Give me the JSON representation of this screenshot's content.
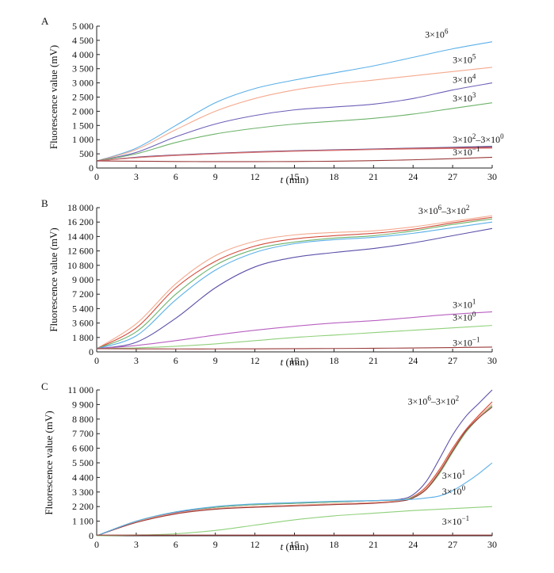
{
  "chart_data": [
    {
      "type": "line",
      "panel": "A",
      "xlabel_italic": "t",
      "xlabel_unit": " (min)",
      "ylabel": "Fluorescence value (mV)",
      "xlim": [
        0,
        30
      ],
      "ylim": [
        0,
        5000
      ],
      "xticks": [
        0,
        3,
        6,
        9,
        12,
        15,
        18,
        21,
        24,
        27,
        30
      ],
      "xtick_labels": [
        "0",
        "3",
        "6",
        "9",
        "12",
        "15",
        "18",
        "21",
        "24",
        "27",
        "30"
      ],
      "yticks": [
        0,
        500,
        1000,
        1500,
        2000,
        2500,
        3000,
        3500,
        4000,
        4500,
        5000
      ],
      "ytick_labels": [
        "0",
        "500",
        "1 000",
        "1 500",
        "2 000",
        "2 500",
        "3 000",
        "3 500",
        "4 000",
        "4 500",
        "5 000"
      ],
      "series": [
        {
          "color": "#5bb0e8",
          "x": [
            0,
            3,
            6,
            9,
            12,
            15,
            18,
            21,
            24,
            27,
            30
          ],
          "y": [
            250,
            700,
            1500,
            2300,
            2800,
            3100,
            3350,
            3600,
            3900,
            4200,
            4450
          ]
        },
        {
          "color": "#f4a98e",
          "x": [
            0,
            3,
            6,
            9,
            12,
            15,
            18,
            21,
            24,
            27,
            30
          ],
          "y": [
            250,
            650,
            1350,
            2000,
            2450,
            2750,
            2950,
            3100,
            3250,
            3400,
            3550
          ]
        },
        {
          "color": "#6f5fb8",
          "x": [
            0,
            3,
            6,
            9,
            12,
            15,
            18,
            21,
            24,
            27,
            30
          ],
          "y": [
            250,
            550,
            1100,
            1550,
            1850,
            2050,
            2150,
            2250,
            2450,
            2750,
            3000
          ]
        },
        {
          "color": "#6db36a",
          "x": [
            0,
            3,
            6,
            9,
            12,
            15,
            18,
            21,
            24,
            27,
            30
          ],
          "y": [
            250,
            500,
            900,
            1200,
            1400,
            1550,
            1650,
            1750,
            1900,
            2100,
            2300
          ]
        },
        {
          "color": "#3a3a8a",
          "x": [
            0,
            3,
            6,
            9,
            12,
            15,
            18,
            21,
            24,
            27,
            30
          ],
          "y": [
            250,
            380,
            460,
            520,
            570,
            610,
            640,
            670,
            700,
            730,
            760
          ]
        },
        {
          "color": "#c84a4a",
          "x": [
            0,
            3,
            6,
            9,
            12,
            15,
            18,
            21,
            24,
            27,
            30
          ],
          "y": [
            250,
            370,
            450,
            510,
            560,
            600,
            630,
            660,
            690,
            710,
            730
          ]
        },
        {
          "color": "#d77a7a",
          "x": [
            0,
            3,
            6,
            9,
            12,
            15,
            18,
            21,
            24,
            27,
            30
          ],
          "y": [
            250,
            360,
            440,
            500,
            550,
            590,
            620,
            650,
            670,
            690,
            700
          ]
        },
        {
          "color": "#9a3a3a",
          "x": [
            0,
            3,
            6,
            9,
            12,
            15,
            18,
            21,
            24,
            27,
            30
          ],
          "y": [
            250,
            240,
            230,
            225,
            225,
            230,
            240,
            260,
            290,
            330,
            380
          ]
        }
      ],
      "annotations": [
        {
          "base": "3×10",
          "exp": "6",
          "x": 24.9,
          "y": 4600
        },
        {
          "base": "3×10",
          "exp": "5",
          "x": 27.0,
          "y": 3700
        },
        {
          "base": "3×10",
          "exp": "4",
          "x": 27.0,
          "y": 3000
        },
        {
          "base": "3×10",
          "exp": "3",
          "x": 27.0,
          "y": 2350
        },
        {
          "base": "3×10",
          "exp": "2",
          "mid": "–3×10",
          "exp2": "0",
          "x": 27.0,
          "y": 900
        },
        {
          "base": "3×10",
          "exp": "−1",
          "x": 27.0,
          "y": 440
        }
      ]
    },
    {
      "type": "line",
      "panel": "B",
      "xlabel_italic": "t",
      "xlabel_unit": " (min)",
      "ylabel": "Fluorescence value (mV)",
      "xlim": [
        0,
        30
      ],
      "ylim": [
        0,
        18000
      ],
      "xticks": [
        0,
        3,
        6,
        9,
        12,
        15,
        18,
        21,
        24,
        27,
        30
      ],
      "xtick_labels": [
        "0",
        "3",
        "6",
        "9",
        "12",
        "15",
        "18",
        "21",
        "24",
        "27",
        "30"
      ],
      "yticks": [
        0,
        1800,
        3600,
        5400,
        7200,
        9000,
        10800,
        12600,
        14400,
        16200,
        18000
      ],
      "ytick_labels": [
        "0",
        "1 800",
        "3 600",
        "5 400",
        "7 200",
        "9 000",
        "10 800",
        "12 600",
        "14 400",
        "16 200",
        "18 000"
      ],
      "series": [
        {
          "color": "#f4a98e",
          "x": [
            0,
            3,
            6,
            9,
            12,
            15,
            18,
            21,
            24,
            27,
            30
          ],
          "y": [
            400,
            3500,
            8500,
            12000,
            13800,
            14600,
            14900,
            15100,
            15600,
            16300,
            17000
          ]
        },
        {
          "color": "#d44a3a",
          "x": [
            0,
            3,
            6,
            9,
            12,
            15,
            18,
            21,
            24,
            27,
            30
          ],
          "y": [
            400,
            3000,
            8000,
            11300,
            13200,
            14100,
            14500,
            14800,
            15300,
            16100,
            16800
          ]
        },
        {
          "color": "#6db36a",
          "x": [
            0,
            3,
            6,
            9,
            12,
            15,
            18,
            21,
            24,
            27,
            30
          ],
          "y": [
            400,
            2500,
            7200,
            10800,
            12800,
            13700,
            14200,
            14500,
            15100,
            15900,
            16600
          ]
        },
        {
          "color": "#5bb0e8",
          "x": [
            0,
            3,
            6,
            9,
            12,
            15,
            18,
            21,
            24,
            27,
            30
          ],
          "y": [
            400,
            2000,
            6500,
            10200,
            12400,
            13500,
            14000,
            14300,
            14800,
            15500,
            16200
          ]
        },
        {
          "color": "#5a4fa8",
          "x": [
            0,
            3,
            6,
            9,
            12,
            15,
            18,
            21,
            24,
            27,
            30
          ],
          "y": [
            400,
            1200,
            4200,
            8000,
            10600,
            11800,
            12400,
            12900,
            13600,
            14500,
            15400
          ]
        },
        {
          "color": "#b860c0",
          "x": [
            0,
            3,
            6,
            9,
            12,
            15,
            18,
            21,
            24,
            27,
            30
          ],
          "y": [
            400,
            800,
            1400,
            2100,
            2700,
            3200,
            3600,
            3900,
            4300,
            4700,
            5000
          ]
        },
        {
          "color": "#8fd07a",
          "x": [
            0,
            3,
            6,
            9,
            12,
            15,
            18,
            21,
            24,
            27,
            30
          ],
          "y": [
            400,
            500,
            700,
            1000,
            1400,
            1800,
            2100,
            2400,
            2700,
            3000,
            3300
          ]
        },
        {
          "color": "#9a3a3a",
          "x": [
            0,
            3,
            6,
            9,
            12,
            15,
            18,
            21,
            24,
            27,
            30
          ],
          "y": [
            400,
            380,
            370,
            370,
            380,
            400,
            420,
            450,
            490,
            540,
            600
          ]
        }
      ],
      "annotations": [
        {
          "base": "3×10",
          "exp": "6",
          "mid": "–3×10",
          "exp2": "2",
          "x": 24.4,
          "y": 17200
        },
        {
          "base": "3×10",
          "exp": "1",
          "x": 27.0,
          "y": 5500
        },
        {
          "base": "3×10",
          "exp": "0",
          "x": 27.0,
          "y": 3900
        },
        {
          "base": "3×10",
          "exp": "−1",
          "x": 27.0,
          "y": 750
        }
      ]
    },
    {
      "type": "line",
      "panel": "C",
      "xlabel_italic": "t",
      "xlabel_unit": " (min)",
      "ylabel": "Fluorescence value (mV)",
      "xlim": [
        0,
        30
      ],
      "ylim": [
        0,
        11000
      ],
      "xticks": [
        0,
        3,
        6,
        9,
        12,
        15,
        18,
        21,
        24,
        27,
        30
      ],
      "xtick_labels": [
        "0",
        "3",
        "6",
        "9",
        "12",
        "15",
        "18",
        "21",
        "24",
        "27",
        "30"
      ],
      "yticks": [
        0,
        1100,
        2200,
        3300,
        4400,
        5500,
        6600,
        7700,
        8800,
        9900,
        11000
      ],
      "ytick_labels": [
        "0",
        "1 100",
        "2 200",
        "3 300",
        "4 400",
        "5 500",
        "6 600",
        "7 700",
        "8 800",
        "9 900",
        "11 000"
      ],
      "series": [
        {
          "color": "#5a4fa8",
          "x": [
            0,
            3,
            6,
            9,
            12,
            15,
            18,
            21,
            23,
            24,
            25,
            26,
            27,
            28,
            29,
            30
          ],
          "y": [
            0,
            1100,
            1750,
            2150,
            2350,
            2450,
            2550,
            2650,
            2750,
            3100,
            4100,
            5800,
            7600,
            9000,
            10000,
            11000
          ]
        },
        {
          "color": "#d44a3a",
          "x": [
            0,
            3,
            6,
            9,
            12,
            15,
            18,
            21,
            23,
            24,
            25,
            26,
            27,
            28,
            29,
            30
          ],
          "y": [
            0,
            1050,
            1700,
            2050,
            2200,
            2300,
            2400,
            2500,
            2650,
            2950,
            3700,
            5000,
            6600,
            8000,
            9100,
            10100
          ]
        },
        {
          "color": "#f4a98e",
          "x": [
            0,
            3,
            6,
            9,
            12,
            15,
            18,
            21,
            23,
            24,
            25,
            26,
            27,
            28,
            29,
            30
          ],
          "y": [
            0,
            1050,
            1700,
            2050,
            2200,
            2300,
            2400,
            2500,
            2650,
            2900,
            3600,
            4900,
            6500,
            7900,
            9000,
            9900
          ]
        },
        {
          "color": "#6db36a",
          "x": [
            0,
            3,
            6,
            9,
            12,
            15,
            18,
            21,
            23,
            24,
            25,
            26,
            27,
            28,
            29,
            30
          ],
          "y": [
            0,
            1100,
            1800,
            2150,
            2350,
            2450,
            2550,
            2650,
            2700,
            2900,
            3500,
            4700,
            6300,
            7800,
            8900,
            9800
          ]
        },
        {
          "color": "#9a3a3a",
          "x": [
            0,
            3,
            6,
            9,
            12,
            15,
            18,
            21,
            23,
            24,
            25,
            26,
            27,
            28,
            29,
            30
          ],
          "y": [
            0,
            1000,
            1650,
            2000,
            2150,
            2250,
            2350,
            2450,
            2600,
            2850,
            3500,
            4800,
            6400,
            7900,
            8900,
            9700
          ]
        },
        {
          "color": "#5bb0e8",
          "x": [
            0,
            3,
            6,
            9,
            12,
            15,
            18,
            21,
            23,
            24,
            25,
            26,
            27,
            28,
            29,
            30
          ],
          "y": [
            0,
            1100,
            1800,
            2200,
            2400,
            2500,
            2600,
            2650,
            2700,
            2750,
            2850,
            3000,
            3400,
            4000,
            4700,
            5500
          ]
        },
        {
          "color": "#8fd07a",
          "x": [
            0,
            3,
            6,
            9,
            12,
            15,
            18,
            21,
            24,
            27,
            30
          ],
          "y": [
            0,
            50,
            150,
            400,
            800,
            1200,
            1500,
            1700,
            1900,
            2050,
            2200
          ]
        },
        {
          "color": "#9a3a3a",
          "x": [
            0,
            3,
            6,
            9,
            12,
            15,
            18,
            21,
            24,
            27,
            30
          ],
          "y": [
            50,
            50,
            50,
            50,
            50,
            50,
            50,
            50,
            50,
            50,
            50
          ]
        }
      ],
      "annotations": [
        {
          "base": "3×10",
          "exp": "6",
          "mid": "–3×10",
          "exp2": "2",
          "x": 23.6,
          "y": 9900
        },
        {
          "base": "3×10",
          "exp": "1",
          "x": 26.2,
          "y": 4300
        },
        {
          "base": "3×10",
          "exp": "0",
          "x": 26.2,
          "y": 3100
        },
        {
          "base": "3×10",
          "exp": "−1",
          "x": 26.2,
          "y": 850
        }
      ]
    }
  ]
}
